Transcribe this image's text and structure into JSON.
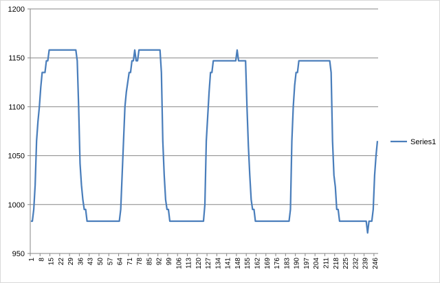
{
  "chart_data": {
    "type": "line",
    "categories": [
      "1",
      null,
      null,
      null,
      null,
      null,
      null,
      "8",
      null,
      null,
      null,
      null,
      null,
      null,
      "15",
      null,
      null,
      null,
      null,
      null,
      null,
      "22",
      null,
      null,
      null,
      null,
      null,
      null,
      "29",
      null,
      null,
      null,
      null,
      null,
      null,
      "36",
      null,
      null,
      null,
      null,
      null,
      null,
      "43",
      null,
      null,
      null,
      null,
      null,
      null,
      "50",
      null,
      null,
      null,
      null,
      null,
      null,
      "57",
      null,
      null,
      null,
      null,
      null,
      null,
      "64",
      null,
      null,
      null,
      null,
      null,
      null,
      "71",
      null,
      null,
      null,
      null,
      null,
      null,
      "78",
      null,
      null,
      null,
      null,
      null,
      null,
      "85",
      null,
      null,
      null,
      null,
      null,
      null,
      "92",
      null,
      null,
      null,
      null,
      null,
      null,
      "99",
      null,
      null,
      null,
      null,
      null,
      null,
      "106",
      null,
      null,
      null,
      null,
      null,
      null,
      "113",
      null,
      null,
      null,
      null,
      null,
      null,
      "120",
      null,
      null,
      null,
      null,
      null,
      null,
      "127",
      null,
      null,
      null,
      null,
      null,
      null,
      "134",
      null,
      null,
      null,
      null,
      null,
      null,
      "141",
      null,
      null,
      null,
      null,
      null,
      null,
      "148",
      null,
      null,
      null,
      null,
      null,
      null,
      "155",
      null,
      null,
      null,
      null,
      null,
      null,
      "162",
      null,
      null,
      null,
      null,
      null,
      null,
      "169",
      null,
      null,
      null,
      null,
      null,
      null,
      "176",
      null,
      null,
      null,
      null,
      null,
      null,
      "183",
      null,
      null,
      null,
      null,
      null,
      null,
      "190",
      null,
      null,
      null,
      null,
      null,
      null,
      "197",
      null,
      null,
      null,
      null,
      null,
      null,
      "204",
      null,
      null,
      null,
      null,
      null,
      null,
      "211",
      null,
      null,
      null,
      null,
      null,
      null,
      "218",
      null,
      null,
      null,
      null,
      null,
      null,
      "225",
      null,
      null,
      null,
      null,
      null,
      null,
      "232",
      null,
      null,
      null,
      null,
      null,
      null,
      "239",
      null,
      null,
      null,
      null,
      null,
      null,
      "246",
      null,
      null
    ],
    "series": [
      {
        "name": "Series1",
        "color": "#4a7ebb",
        "values": [
          983,
          983,
          995,
          1020,
          1065,
          1085,
          1100,
          1120,
          1135,
          1135,
          1135,
          1147,
          1147,
          1158,
          1158,
          1158,
          1158,
          1158,
          1158,
          1158,
          1158,
          1158,
          1158,
          1158,
          1158,
          1158,
          1158,
          1158,
          1158,
          1158,
          1158,
          1158,
          1158,
          1147,
          1100,
          1042,
          1020,
          1005,
          995,
          995,
          983,
          983,
          983,
          983,
          983,
          983,
          983,
          983,
          983,
          983,
          983,
          983,
          983,
          983,
          983,
          983,
          983,
          983,
          983,
          983,
          983,
          983,
          983,
          983,
          995,
          1030,
          1065,
          1100,
          1115,
          1125,
          1135,
          1135,
          1147,
          1147,
          1158,
          1147,
          1147,
          1158,
          1158,
          1158,
          1158,
          1158,
          1158,
          1158,
          1158,
          1158,
          1158,
          1158,
          1158,
          1158,
          1158,
          1158,
          1158,
          1135,
          1065,
          1030,
          1005,
          995,
          995,
          983,
          983,
          983,
          983,
          983,
          983,
          983,
          983,
          983,
          983,
          983,
          983,
          983,
          983,
          983,
          983,
          983,
          983,
          983,
          983,
          983,
          983,
          983,
          983,
          983,
          1000,
          1065,
          1090,
          1115,
          1135,
          1135,
          1147,
          1147,
          1147,
          1147,
          1147,
          1147,
          1147,
          1147,
          1147,
          1147,
          1147,
          1147,
          1147,
          1147,
          1147,
          1147,
          1147,
          1158,
          1147,
          1147,
          1147,
          1147,
          1147,
          1147,
          1100,
          1060,
          1030,
          1005,
          995,
          995,
          983,
          983,
          983,
          983,
          983,
          983,
          983,
          983,
          983,
          983,
          983,
          983,
          983,
          983,
          983,
          983,
          983,
          983,
          983,
          983,
          983,
          983,
          983,
          983,
          983,
          995,
          1065,
          1100,
          1122,
          1135,
          1135,
          1147,
          1147,
          1147,
          1147,
          1147,
          1147,
          1147,
          1147,
          1147,
          1147,
          1147,
          1147,
          1147,
          1147,
          1147,
          1147,
          1147,
          1147,
          1147,
          1147,
          1147,
          1147,
          1147,
          1135,
          1065,
          1030,
          1018,
          995,
          995,
          983,
          983,
          983,
          983,
          983,
          983,
          983,
          983,
          983,
          983,
          983,
          983,
          983,
          983,
          983,
          983,
          983,
          983,
          983,
          983,
          971,
          983,
          983,
          983,
          995,
          1030,
          1050,
          1065
        ]
      }
    ],
    "ylim": [
      950,
      1200
    ],
    "yticks": [
      950,
      1000,
      1050,
      1100,
      1150,
      1200
    ],
    "grid": true,
    "legend": "right"
  }
}
